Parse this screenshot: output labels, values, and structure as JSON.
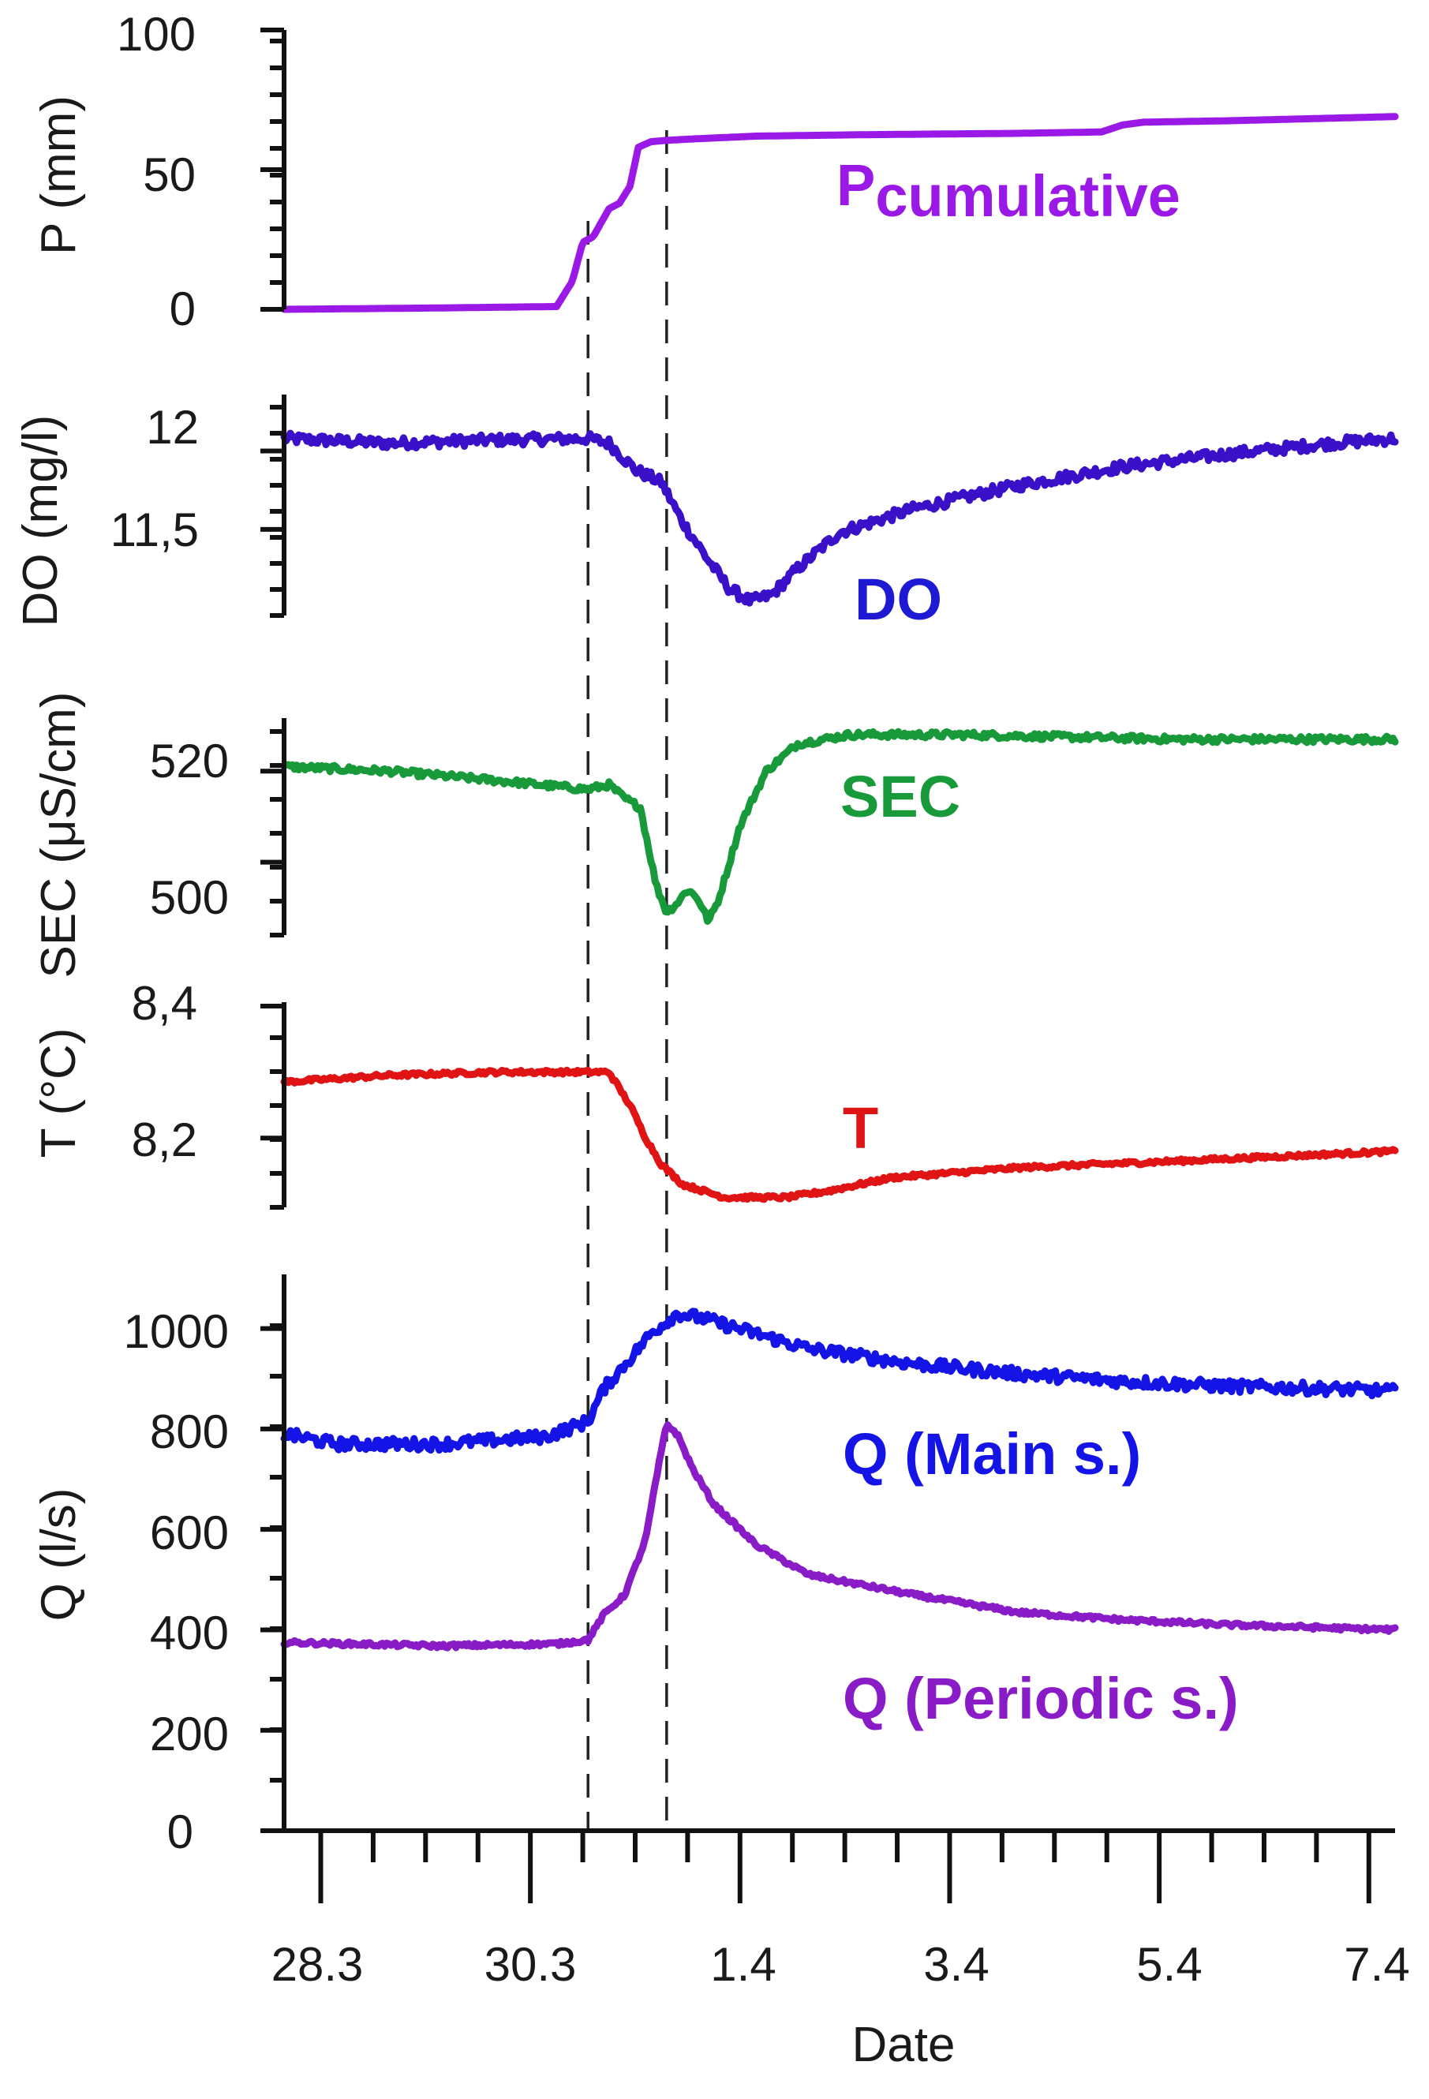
{
  "chart_data": {
    "type": "line",
    "xlabel": "Date",
    "x_ticks": [
      "28.3",
      "30.3",
      "1.4",
      "3.4",
      "5.4",
      "7.4"
    ],
    "x_domain_days": [
      0,
      10.6
    ],
    "x_tick_days": [
      0.35,
      2.35,
      4.35,
      6.35,
      8.35,
      10.35
    ],
    "event_lines_days": [
      2.9,
      3.65
    ],
    "panels": [
      {
        "id": "precip",
        "ylabel": "P (mm)",
        "ylim": [
          0,
          100
        ],
        "y_ticks": [
          "0",
          "50",
          "100"
        ],
        "y_tick_values": [
          0,
          50,
          100
        ],
        "series": [
          {
            "name": "P",
            "name_sub": "cumulative",
            "color": "#9a19e6",
            "noise": 0,
            "points": [
              [
                0,
                0
              ],
              [
                1.5,
                0.5
              ],
              [
                2.6,
                1
              ],
              [
                2.75,
                10
              ],
              [
                2.85,
                24
              ],
              [
                2.95,
                26
              ],
              [
                3.1,
                36
              ],
              [
                3.2,
                38
              ],
              [
                3.3,
                44
              ],
              [
                3.38,
                58
              ],
              [
                3.5,
                60
              ],
              [
                3.65,
                60.5
              ],
              [
                3.9,
                61
              ],
              [
                4.5,
                62
              ],
              [
                5.5,
                62.5
              ],
              [
                7.0,
                63
              ],
              [
                7.8,
                63.5
              ],
              [
                8.0,
                66
              ],
              [
                8.2,
                67
              ],
              [
                9.0,
                67.5
              ],
              [
                10.6,
                69
              ]
            ]
          }
        ]
      },
      {
        "id": "do",
        "ylabel": "DO (mg/l)",
        "ylim": [
          10.95,
          12.3
        ],
        "y_ticks": [
          "11,5",
          "12"
        ],
        "y_tick_values": [
          11.5,
          12
        ],
        "series": [
          {
            "name": "DO",
            "color": "#3a10c8",
            "noise": 0.035,
            "points": [
              [
                0,
                12.08
              ],
              [
                1.0,
                12.05
              ],
              [
                2.0,
                12.07
              ],
              [
                2.9,
                12.08
              ],
              [
                3.1,
                12.05
              ],
              [
                3.35,
                11.88
              ],
              [
                3.6,
                11.8
              ],
              [
                3.8,
                11.55
              ],
              [
                4.05,
                11.3
              ],
              [
                4.25,
                11.12
              ],
              [
                4.45,
                11.04
              ],
              [
                4.65,
                11.08
              ],
              [
                4.9,
                11.25
              ],
              [
                5.3,
                11.48
              ],
              [
                6.0,
                11.63
              ],
              [
                7.0,
                11.78
              ],
              [
                8.0,
                11.9
              ],
              [
                9.0,
                11.98
              ],
              [
                10.0,
                12.05
              ],
              [
                10.6,
                12.08
              ]
            ]
          }
        ]
      },
      {
        "id": "sec",
        "ylabel": "SEC (μS/cm)",
        "ylim": [
          484,
          532
        ],
        "y_ticks": [
          "500",
          "520"
        ],
        "y_tick_values": [
          500,
          520
        ],
        "series": [
          {
            "name": "SEC",
            "color": "#189a3a",
            "noise": 0.7,
            "points": [
              [
                0,
                521
              ],
              [
                1.0,
                520
              ],
              [
                2.0,
                518
              ],
              [
                2.9,
                516
              ],
              [
                3.1,
                517
              ],
              [
                3.25,
                514
              ],
              [
                3.4,
                512
              ],
              [
                3.55,
                495
              ],
              [
                3.65,
                489
              ],
              [
                3.75,
                491
              ],
              [
                3.85,
                494
              ],
              [
                3.95,
                492
              ],
              [
                4.05,
                487
              ],
              [
                4.15,
                492
              ],
              [
                4.35,
                508
              ],
              [
                4.6,
                520
              ],
              [
                4.9,
                526
              ],
              [
                5.4,
                528
              ],
              [
                6.5,
                528
              ],
              [
                8.5,
                527
              ],
              [
                10.6,
                527
              ]
            ]
          }
        ]
      },
      {
        "id": "temp",
        "ylabel": "T (°C)",
        "ylim": [
          8.095,
          8.4
        ],
        "y_ticks": [
          "8,2",
          "8,4"
        ],
        "y_tick_values": [
          8.2,
          8.4
        ],
        "series": [
          {
            "name": "T",
            "color": "#e01414",
            "noise": 0.003,
            "points": [
              [
                0,
                8.285
              ],
              [
                1.0,
                8.295
              ],
              [
                2.0,
                8.3
              ],
              [
                3.1,
                8.3
              ],
              [
                3.3,
                8.25
              ],
              [
                3.45,
                8.2
              ],
              [
                3.6,
                8.16
              ],
              [
                3.8,
                8.13
              ],
              [
                4.2,
                8.11
              ],
              [
                4.8,
                8.11
              ],
              [
                5.2,
                8.12
              ],
              [
                5.8,
                8.14
              ],
              [
                7.0,
                8.155
              ],
              [
                8.5,
                8.165
              ],
              [
                10.6,
                8.18
              ]
            ]
          }
        ]
      },
      {
        "id": "discharge",
        "ylabel": "Q (l/s)",
        "ylim": [
          0,
          1100
        ],
        "y_ticks": [
          "0",
          "200",
          "400",
          "600",
          "800",
          "1000"
        ],
        "y_tick_values": [
          0,
          200,
          400,
          600,
          800,
          1000
        ],
        "series": [
          {
            "name": "Q (Main s.)",
            "color": "#1414e6",
            "noise": 12,
            "points": [
              [
                0,
                790
              ],
              [
                0.5,
                770
              ],
              [
                1.5,
                770
              ],
              [
                2.5,
                785
              ],
              [
                2.9,
                815
              ],
              [
                3.05,
                880
              ],
              [
                3.3,
                940
              ],
              [
                3.5,
                990
              ],
              [
                3.75,
                1030
              ],
              [
                4.0,
                1020
              ],
              [
                4.5,
                990
              ],
              [
                5.0,
                960
              ],
              [
                6.0,
                930
              ],
              [
                7.0,
                910
              ],
              [
                8.0,
                895
              ],
              [
                9.0,
                885
              ],
              [
                10.0,
                880
              ],
              [
                10.6,
                875
              ]
            ]
          },
          {
            "name": "Q (Periodic s.)",
            "color": "#8a1cc8",
            "noise": 4,
            "points": [
              [
                0,
                375
              ],
              [
                1.5,
                368
              ],
              [
                2.6,
                372
              ],
              [
                2.9,
                380
              ],
              [
                3.05,
                430
              ],
              [
                3.25,
                470
              ],
              [
                3.45,
                580
              ],
              [
                3.55,
                700
              ],
              [
                3.65,
                810
              ],
              [
                3.75,
                790
              ],
              [
                3.9,
                720
              ],
              [
                4.1,
                650
              ],
              [
                4.5,
                570
              ],
              [
                5.0,
                510
              ],
              [
                6.0,
                470
              ],
              [
                7.0,
                435
              ],
              [
                8.0,
                420
              ],
              [
                9.0,
                410
              ],
              [
                10.6,
                400
              ]
            ]
          }
        ]
      }
    ]
  }
}
